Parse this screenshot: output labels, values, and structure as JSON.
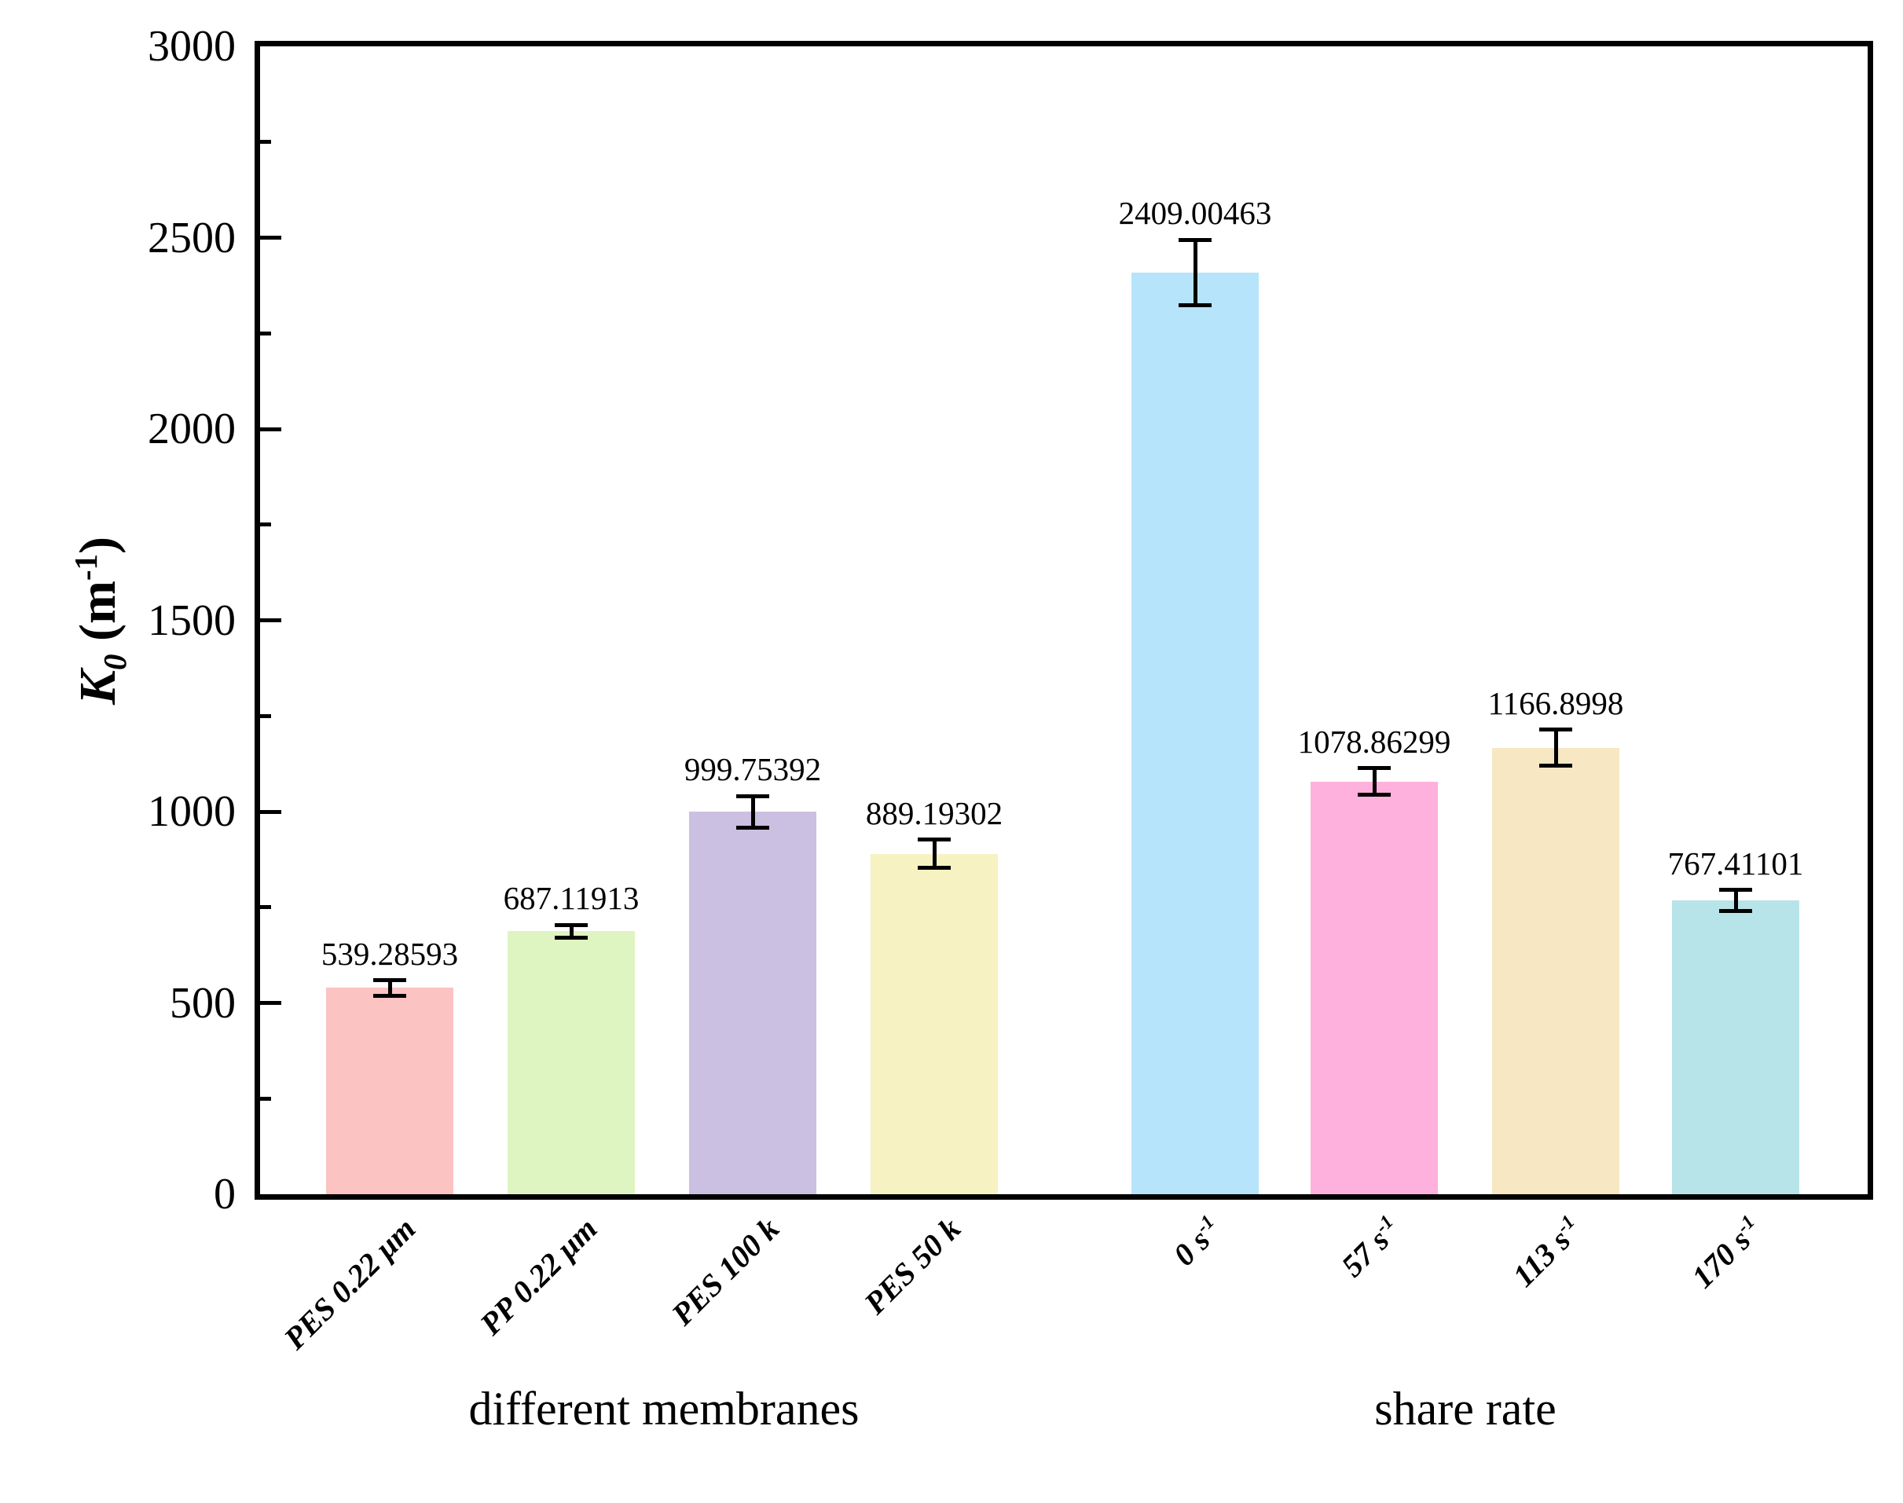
{
  "figure": {
    "background_color": "#FFFFFF",
    "axis_color": "#000000"
  },
  "y_axis": {
    "label": {
      "symbol": "K",
      "subscript": "0",
      "unit_open": " (m",
      "unit_exponent": "-1",
      "unit_close": ")"
    },
    "tick_labels": [
      "0",
      "500",
      "1000",
      "1500",
      "2000",
      "2500",
      "3000"
    ],
    "tick_values": [
      0,
      500,
      1000,
      1500,
      2000,
      2500,
      3000
    ],
    "minor_tick_values": [
      250,
      750,
      1250,
      1750,
      2250,
      2750
    ],
    "max": 3000
  },
  "x_axis": {
    "group_labels": [
      "different membranes",
      "share rate"
    ]
  },
  "chart_data": {
    "type": "bar",
    "title": "",
    "xlabel": "",
    "ylabel": "K0 (m-1)",
    "ylim": [
      0,
      3000
    ],
    "grid": false,
    "legend": false,
    "categories": [
      "PES 0.22 μm",
      "PP 0.22 μm",
      "PES 100 k",
      "PES 50 k",
      "0 s-1",
      "57 s-1",
      "113 s-1",
      "170 s-1"
    ],
    "values": [
      539.28593,
      687.11913,
      999.75392,
      889.19302,
      2409.00463,
      1078.86299,
      1166.8998,
      767.41101
    ],
    "errors": [
      20,
      17,
      41,
      37,
      85,
      35,
      47,
      28
    ],
    "groups": [
      "different membranes",
      "different membranes",
      "different membranes",
      "different membranes",
      "share rate",
      "share rate",
      "share rate",
      "share rate"
    ],
    "bars": [
      {
        "category": "PES 0.22 μm",
        "category_sup": "",
        "value": 539.28593,
        "display_value": "539.28593",
        "error": 20,
        "color": "#FBC3C1"
      },
      {
        "category": "PP 0.22 μm",
        "category_sup": "",
        "value": 687.11913,
        "display_value": "687.11913",
        "error": 17,
        "color": "#DFF5C1"
      },
      {
        "category": "PES 100 k",
        "category_sup": "",
        "value": 999.75392,
        "display_value": "999.75392",
        "error": 41,
        "color": "#CBC0E1"
      },
      {
        "category": "PES 50 k",
        "category_sup": "",
        "value": 889.19302,
        "display_value": "889.19302",
        "error": 37,
        "color": "#F6F2C2"
      },
      {
        "category": "0 s",
        "category_sup": "-1",
        "value": 2409.00463,
        "display_value": "2409.00463",
        "error": 85,
        "color": "#B6E4FB"
      },
      {
        "category": "57 s",
        "category_sup": "-1",
        "value": 1078.86299,
        "display_value": "1078.86299",
        "error": 35,
        "color": "#FEB1DC"
      },
      {
        "category": "113 s",
        "category_sup": "-1",
        "value": 1166.8998,
        "display_value": "1166.8998",
        "error": 47,
        "color": "#F7E7C3"
      },
      {
        "category": "170 s",
        "category_sup": "-1",
        "value": 767.41101,
        "display_value": "767.41101",
        "error": 28,
        "color": "#B7E4E9"
      }
    ]
  }
}
